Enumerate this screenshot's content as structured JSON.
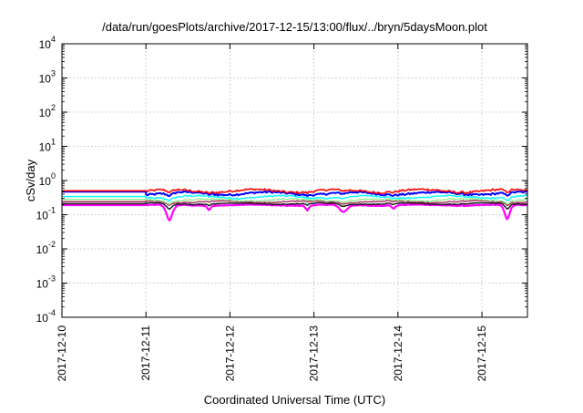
{
  "chart_data": {
    "type": "line",
    "title": "/data/run/goesPlots/archive/2017-12-15/13:00/flux/../bryn/5daysMoon.plot",
    "xlabel": "Coordinated Universal Time (UTC)",
    "ylabel": "cSv/day",
    "y_scale": "log",
    "ylim": [
      0.0001,
      10000
    ],
    "y_ticks": [
      {
        "base": "10",
        "exp": "-4",
        "value": 0.0001
      },
      {
        "base": "10",
        "exp": "-3",
        "value": 0.001
      },
      {
        "base": "10",
        "exp": "-2",
        "value": 0.01
      },
      {
        "base": "10",
        "exp": "-1",
        "value": 0.1
      },
      {
        "base": "10",
        "exp": "0",
        "value": 1
      },
      {
        "base": "10",
        "exp": "1",
        "value": 10
      },
      {
        "base": "10",
        "exp": "2",
        "value": 100
      },
      {
        "base": "10",
        "exp": "3",
        "value": 1000
      },
      {
        "base": "10",
        "exp": "4",
        "value": 10000
      }
    ],
    "xlim": [
      "2017-12-10",
      "2017-12-15T13:00"
    ],
    "x_ticks": [
      "2017-12-10",
      "2017-12-11",
      "2017-12-12",
      "2017-12-13",
      "2017-12-14",
      "2017-12-15"
    ],
    "grid": true,
    "data_start": "2017-12-11",
    "dips": [
      {
        "day": 1.28,
        "width": 0.06,
        "factor": 0.35
      },
      {
        "day": 1.75,
        "width": 0.03,
        "factor": 0.75
      },
      {
        "day": 2.92,
        "width": 0.03,
        "factor": 0.72
      },
      {
        "day": 3.35,
        "width": 0.07,
        "factor": 0.62
      },
      {
        "day": 3.95,
        "width": 0.03,
        "factor": 0.8
      },
      {
        "day": 5.3,
        "width": 0.05,
        "factor": 0.38
      }
    ],
    "series": [
      {
        "color": "#ff00ff",
        "level": 0.19,
        "baseline": 0.19,
        "lineWidth": 2.2
      },
      {
        "color": "#111111",
        "level": 0.21,
        "baseline": 0.21,
        "lineWidth": 1.4
      },
      {
        "color": "#a52a5a",
        "level": 0.24,
        "baseline": 0.24,
        "lineWidth": 1.4
      },
      {
        "color": "#90ee90",
        "level": 0.27,
        "baseline": 0.28,
        "lineWidth": 1.4
      },
      {
        "color": "#00ffff",
        "level": 0.33,
        "baseline": 0.34,
        "lineWidth": 1.4
      },
      {
        "color": "#0000ff",
        "level": 0.42,
        "baseline": 0.47,
        "lineWidth": 2.0
      },
      {
        "color": "#ff0000",
        "level": 0.5,
        "baseline": 0.5,
        "lineWidth": 1.6
      }
    ]
  }
}
